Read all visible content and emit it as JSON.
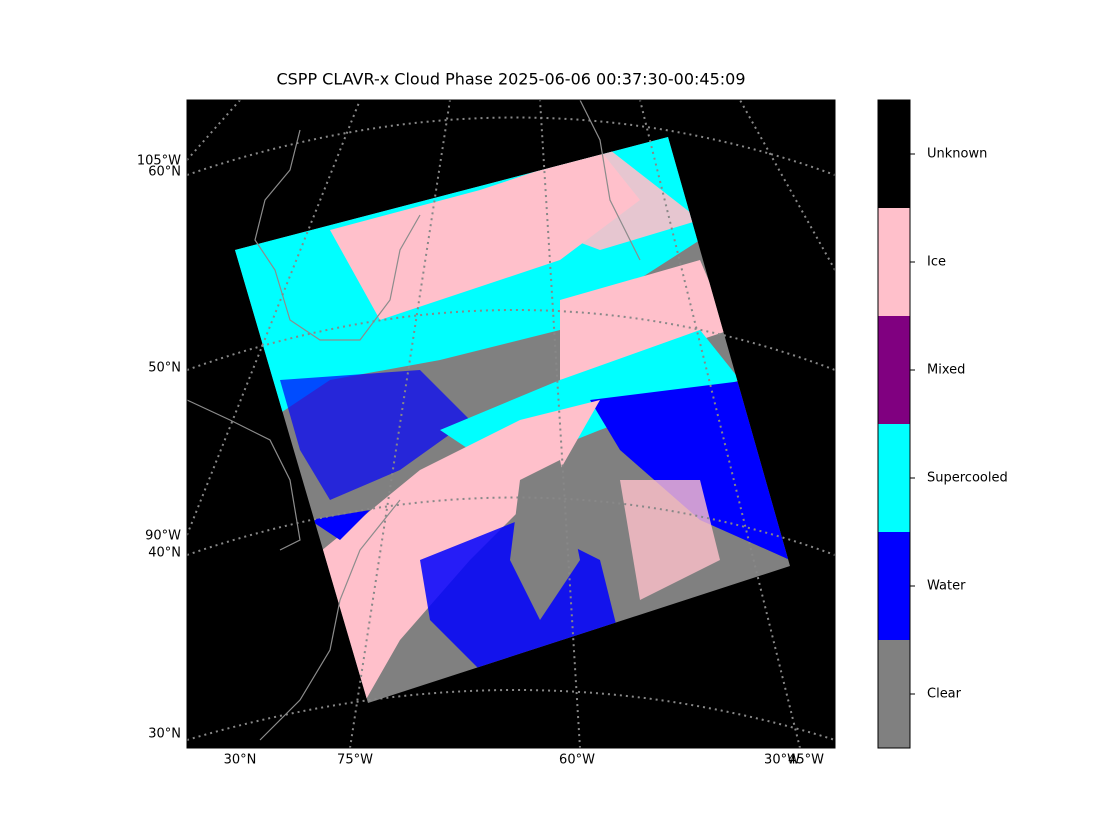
{
  "title": "CSPP CLAVR-x Cloud Phase 2025-06-06 00:37:30-00:45:09",
  "map": {
    "left_labels": [
      "105°W",
      "60°N",
      "50°N",
      "90°W",
      "40°N",
      "30°N"
    ],
    "bottom_labels": [
      "30°N",
      "75°W",
      "60°W",
      "30°W",
      "45°W"
    ]
  },
  "colorbar": {
    "categories": [
      {
        "label": "Clear",
        "color": "#808080"
      },
      {
        "label": "Water",
        "color": "#0000ff"
      },
      {
        "label": "Supercooled",
        "color": "#00ffff"
      },
      {
        "label": "Mixed",
        "color": "#800080"
      },
      {
        "label": "Ice",
        "color": "#ffc0cb"
      },
      {
        "label": "Unknown",
        "color": "#000000"
      }
    ]
  }
}
